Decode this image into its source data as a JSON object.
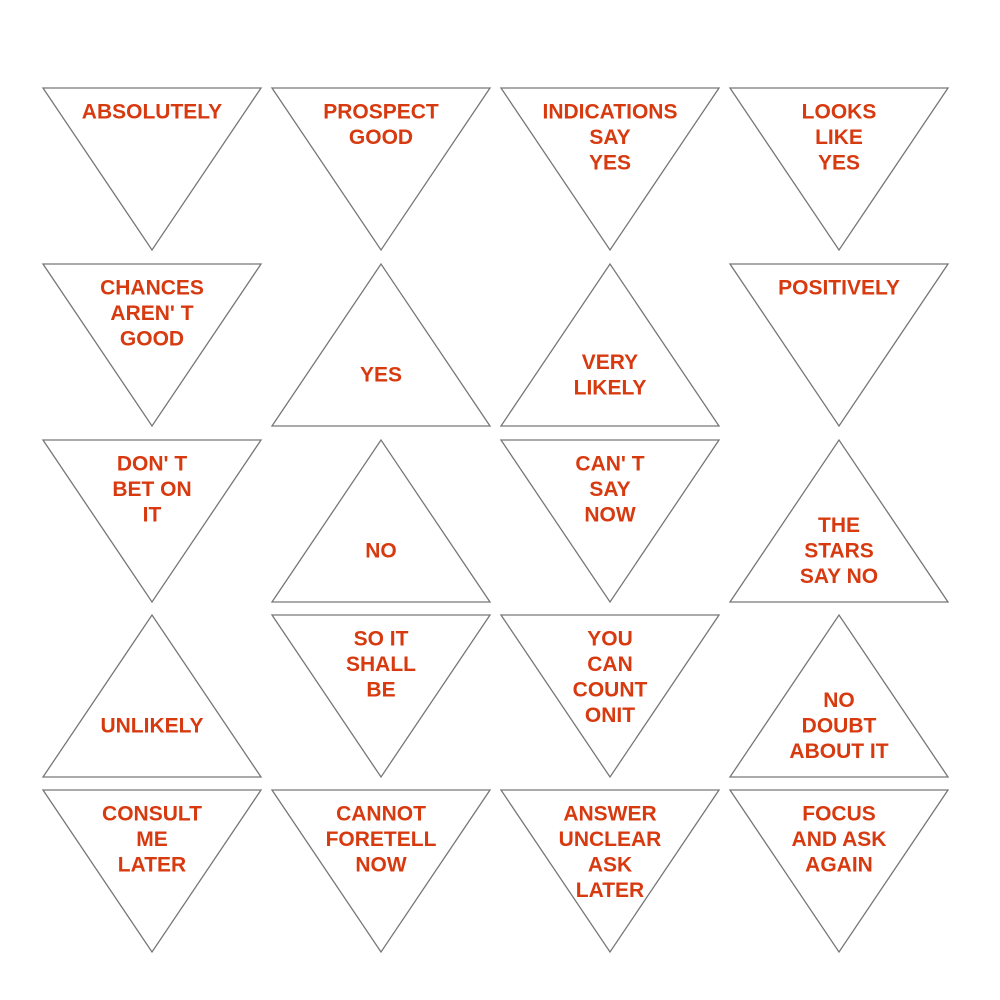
{
  "faces": [
    {
      "lines": [
        "ABSOLUTELY"
      ]
    },
    {
      "lines": [
        "PROSPECT",
        "GOOD"
      ]
    },
    {
      "lines": [
        "INDICATIONS",
        "SAY",
        "YES"
      ]
    },
    {
      "lines": [
        "LOOKS",
        "LIKE",
        "YES"
      ]
    },
    {
      "lines": [
        "CHANCES",
        "AREN' T",
        "GOOD"
      ]
    },
    {
      "lines": [
        "YES"
      ]
    },
    {
      "lines": [
        "VERY",
        "LIKELY"
      ]
    },
    {
      "lines": [
        "POSITIVELY"
      ]
    },
    {
      "lines": [
        "DON' T",
        "BET ON",
        "IT"
      ]
    },
    {
      "lines": [
        "NO"
      ]
    },
    {
      "lines": [
        "CAN' T",
        "SAY",
        "NOW"
      ]
    },
    {
      "lines": [
        "THE",
        "STARS",
        "SAY NO"
      ]
    },
    {
      "lines": [
        "UNLIKELY"
      ]
    },
    {
      "lines": [
        "SO IT",
        "SHALL",
        "BE"
      ]
    },
    {
      "lines": [
        "YOU",
        "CAN",
        "COUNT",
        "ONIT"
      ]
    },
    {
      "lines": [
        "NO",
        "DOUBT",
        "ABOUT IT"
      ]
    },
    {
      "lines": [
        "CONSULT",
        "ME",
        "LATER"
      ]
    },
    {
      "lines": [
        "CANNOT",
        "FORETELL",
        "NOW"
      ]
    },
    {
      "lines": [
        "ANSWER",
        "UNCLEAR",
        "ASK",
        "LATER"
      ]
    },
    {
      "lines": [
        "FOCUS",
        "AND ASK",
        "AGAIN"
      ]
    }
  ]
}
